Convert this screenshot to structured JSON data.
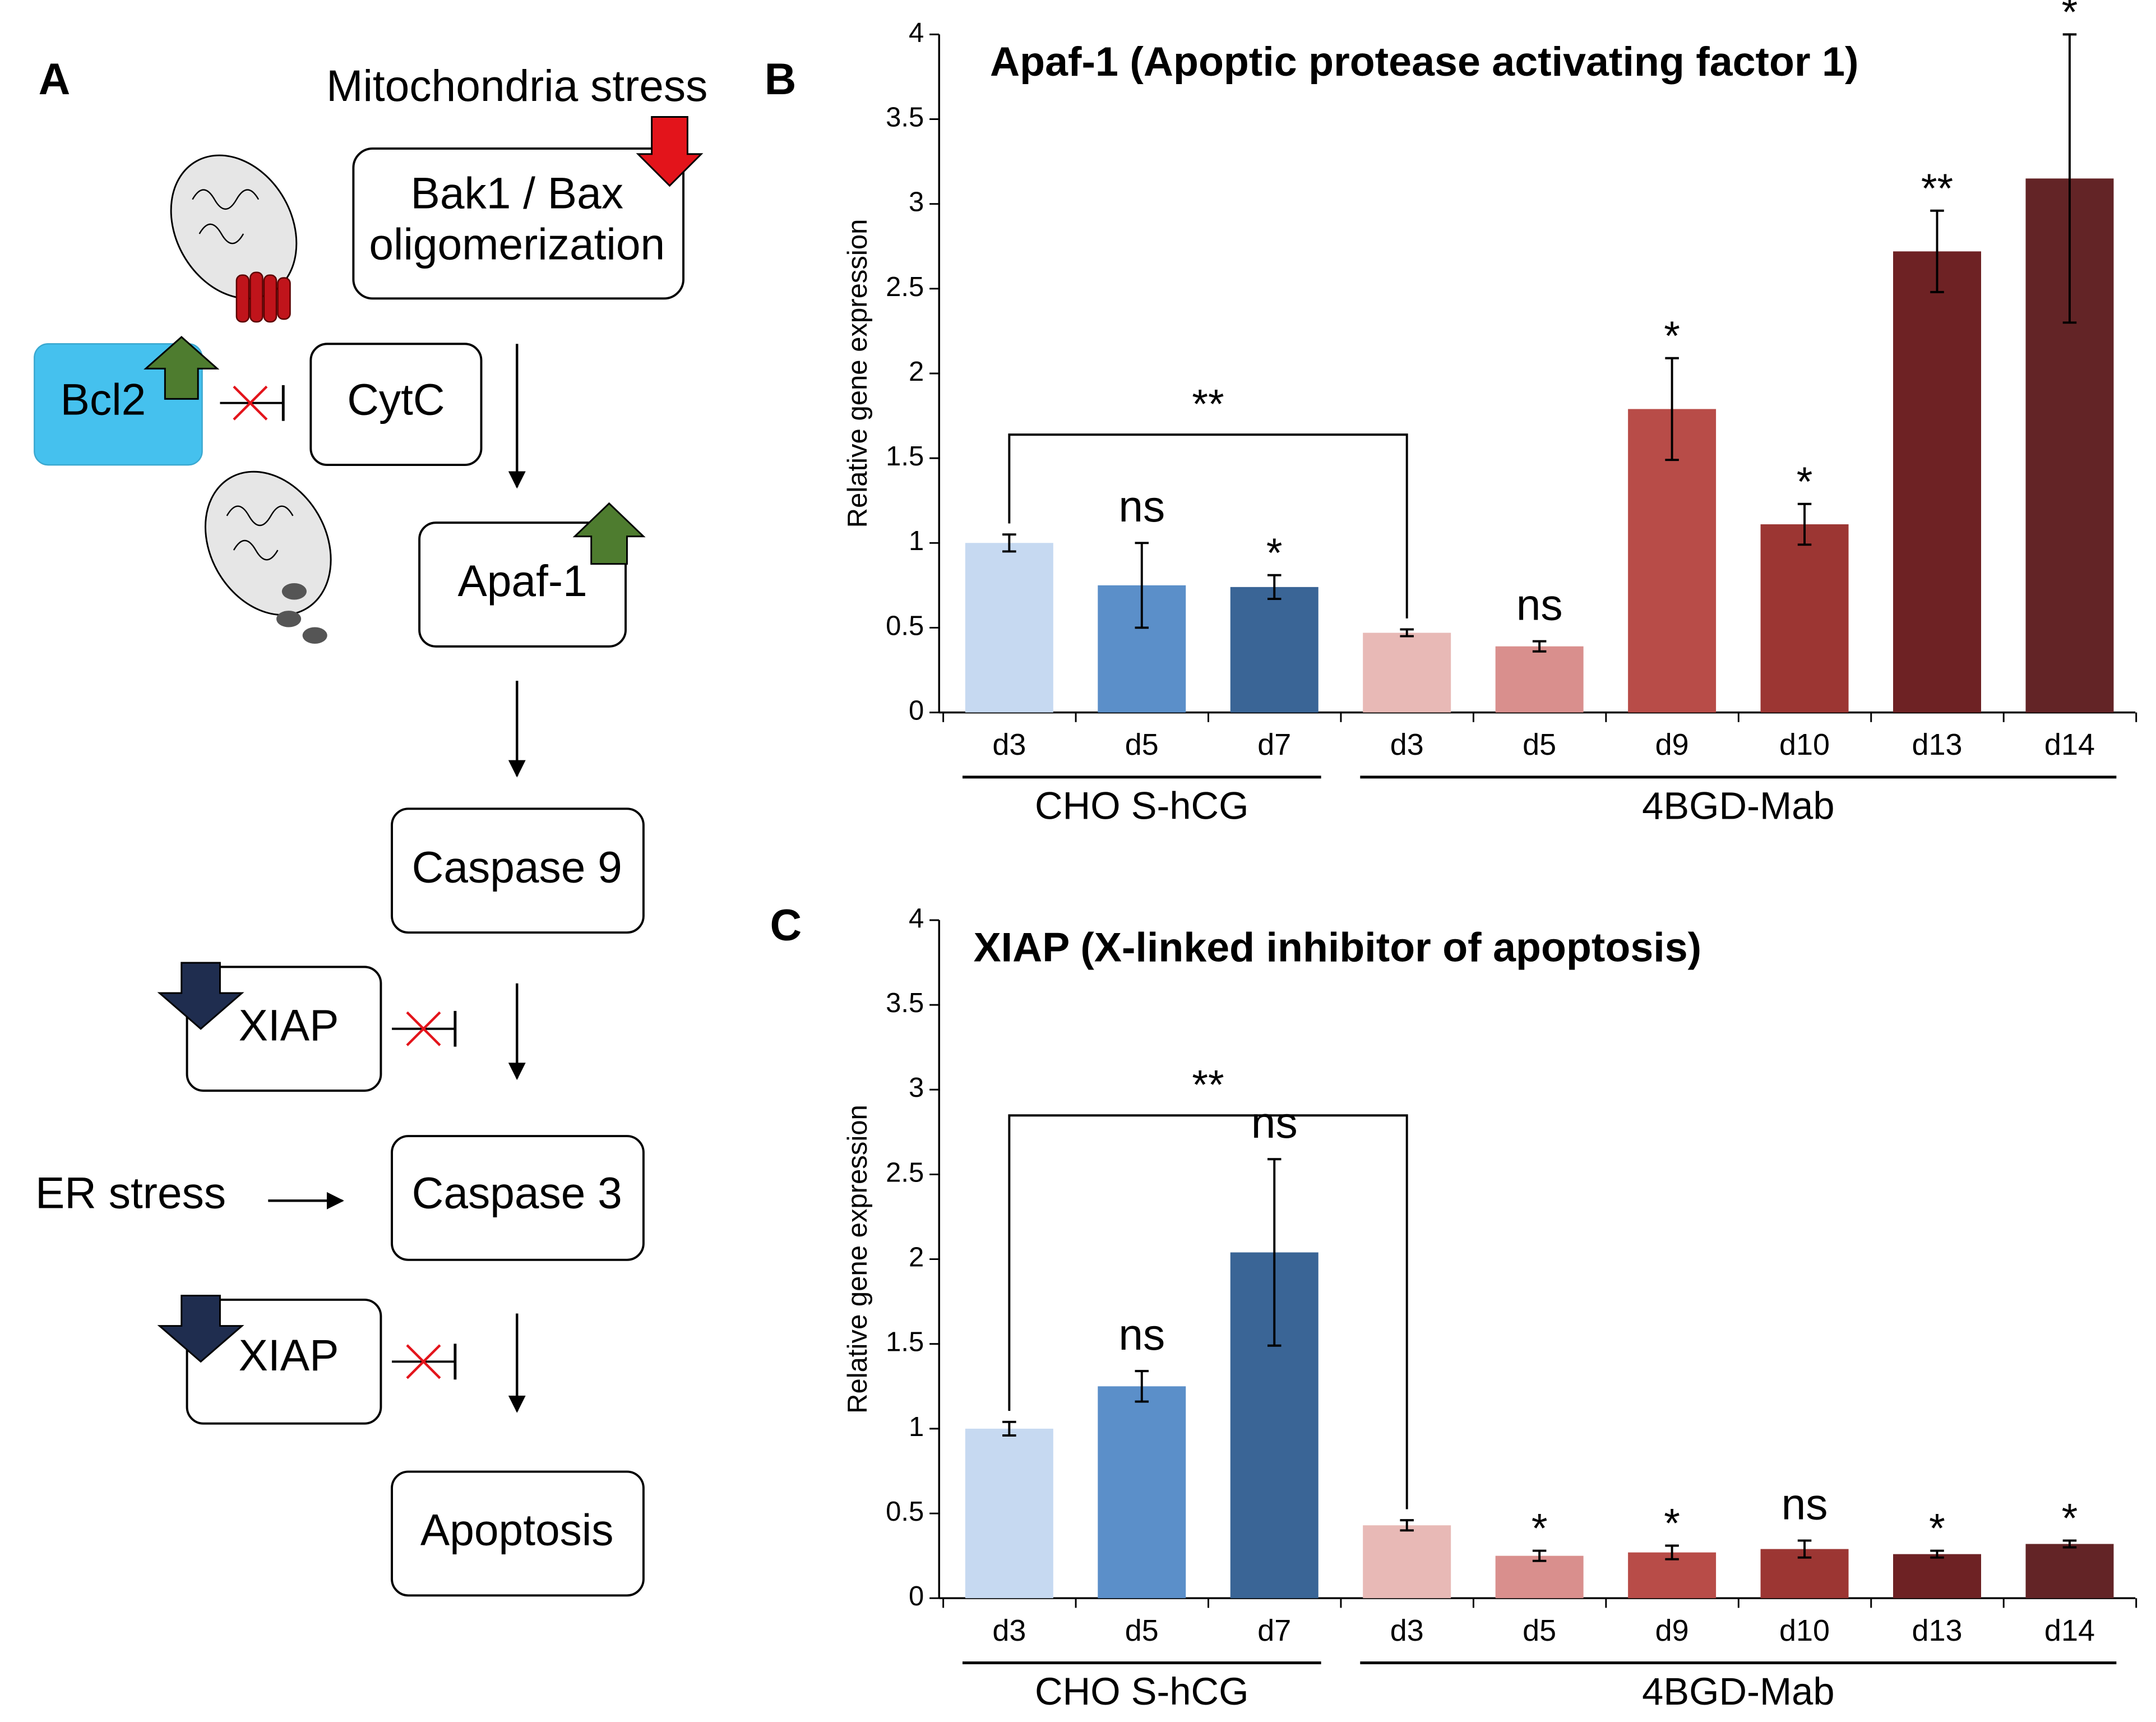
{
  "panel_labels": [
    "A",
    "B",
    "C"
  ],
  "diagram": {
    "nodes": [
      {
        "label": "Mitochondria stress"
      },
      {
        "label": [
          "Bak1 / Bax",
          "oligomerization"
        ]
      },
      {
        "label": "Bcl2"
      },
      {
        "label": "CytC"
      },
      {
        "label": "Apaf-1"
      },
      {
        "label": "Caspase 9"
      },
      {
        "label": "XIAP"
      },
      {
        "label": "ER stress"
      },
      {
        "label": "Caspase 3"
      },
      {
        "label": "XIAP"
      },
      {
        "label": "Apoptosis"
      }
    ]
  },
  "chart_data": [
    {
      "type": "bar",
      "title": "Apaf-1 (Apoptic protease activating factor 1)",
      "y_label": "Relative gene expression",
      "categories": [
        "d3",
        "d5",
        "d7",
        "d3",
        "d5",
        "d9",
        "d10",
        "d13",
        "d14"
      ],
      "group": [
        "CHO S-hCG",
        "CHO S-hCG",
        "CHO S-hCG",
        "4BGD-Mab",
        "4BGD-Mab",
        "4BGD-Mab",
        "4BGD-Mab",
        "4BGD-Mab",
        "4BGD-Mab"
      ],
      "values": [
        1.0,
        0.75,
        0.74,
        0.47,
        0.39,
        1.79,
        1.11,
        2.72,
        3.15
      ],
      "errors": [
        0.05,
        0.25,
        0.07,
        0.02,
        0.03,
        0.3,
        0.12,
        0.24,
        0.85
      ],
      "colors": [
        "#c6d9f1",
        "#5b8fc9",
        "#3a6596",
        "#e8b9b6",
        "#d98f8d",
        "#b84c48",
        "#9c3633",
        "#6e2224",
        "#632426"
      ],
      "annotations": [
        null,
        "ns",
        "*",
        null,
        "ns",
        "*",
        "*",
        "**",
        "*"
      ],
      "bracket_label": "**",
      "ylim": [
        0,
        4
      ],
      "yticks": [
        0,
        0.5,
        1,
        1.5,
        2,
        2.5,
        3,
        3.5,
        4
      ]
    },
    {
      "type": "bar",
      "title": "XIAP (X-linked inhibitor of apoptosis)",
      "y_label": "Relative gene expression",
      "categories": [
        "d3",
        "d5",
        "d7",
        "d3",
        "d5",
        "d9",
        "d10",
        "d13",
        "d14"
      ],
      "group": [
        "CHO S-hCG",
        "CHO S-hCG",
        "CHO S-hCG",
        "4BGD-Mab",
        "4BGD-Mab",
        "4BGD-Mab",
        "4BGD-Mab",
        "4BGD-Mab",
        "4BGD-Mab"
      ],
      "values": [
        1.0,
        1.25,
        2.04,
        0.43,
        0.25,
        0.27,
        0.29,
        0.26,
        0.32
      ],
      "errors": [
        0.04,
        0.09,
        0.55,
        0.03,
        0.03,
        0.04,
        0.05,
        0.02,
        0.02
      ],
      "colors": [
        "#c6d9f1",
        "#5b8fc9",
        "#3a6596",
        "#e8b9b6",
        "#d98f8d",
        "#b84c48",
        "#9c3633",
        "#6e2224",
        "#632426"
      ],
      "annotations": [
        null,
        "ns",
        "ns",
        null,
        "*",
        "*",
        "ns",
        "*",
        "*"
      ],
      "bracket_label": "**",
      "ylim": [
        0,
        4
      ],
      "yticks": [
        0,
        0.5,
        1,
        1.5,
        2,
        2.5,
        3,
        3.5,
        4
      ]
    }
  ]
}
